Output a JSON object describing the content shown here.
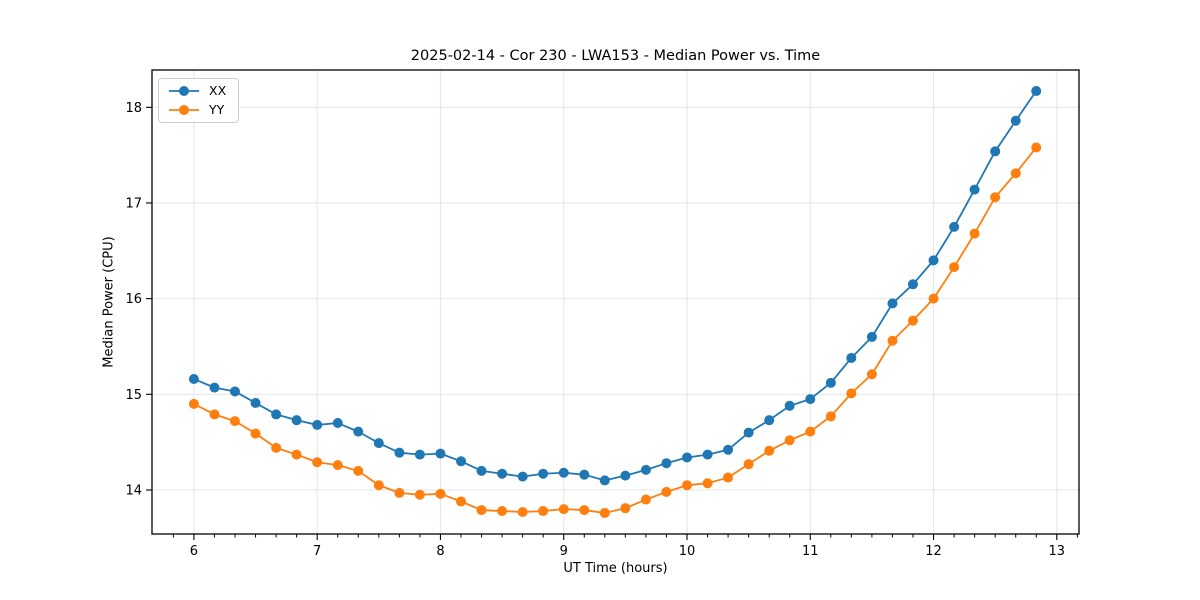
{
  "chart_data": {
    "type": "line",
    "title": "2025-02-14 - Cor 230 - LWA153 - Median Power vs. Time",
    "xlabel": "UT Time (hours)",
    "ylabel": "Median Power (CPU)",
    "xlim": [
      5.66,
      13.18
    ],
    "ylim": [
      13.54,
      18.39
    ],
    "xticks": [
      6,
      7,
      8,
      9,
      10,
      11,
      12,
      13
    ],
    "yticks": [
      14,
      15,
      16,
      17,
      18
    ],
    "x_minor_step": 0.1667,
    "grid": true,
    "grid_color": "#e6e6e6",
    "frame_color": "#000000",
    "legend_position": "upper-left",
    "x": [
      6.0,
      6.167,
      6.333,
      6.5,
      6.667,
      6.833,
      7.0,
      7.167,
      7.333,
      7.5,
      7.667,
      7.833,
      8.0,
      8.167,
      8.333,
      8.5,
      8.667,
      8.833,
      9.0,
      9.167,
      9.333,
      9.5,
      9.667,
      9.833,
      10.0,
      10.167,
      10.333,
      10.5,
      10.667,
      10.833,
      11.0,
      11.167,
      11.333,
      11.5,
      11.667,
      11.833,
      12.0,
      12.167,
      12.333,
      12.5,
      12.667,
      12.833
    ],
    "series": [
      {
        "name": "XX",
        "color": "#1f77b4",
        "values": [
          15.16,
          15.07,
          15.03,
          14.91,
          14.79,
          14.73,
          14.68,
          14.7,
          14.61,
          14.49,
          14.39,
          14.37,
          14.38,
          14.3,
          14.2,
          14.17,
          14.14,
          14.17,
          14.18,
          14.16,
          14.1,
          14.15,
          14.21,
          14.28,
          14.34,
          14.37,
          14.42,
          14.6,
          14.73,
          14.88,
          14.95,
          15.12,
          15.38,
          15.6,
          15.95,
          16.15,
          16.4,
          16.75,
          17.14,
          17.54,
          17.86,
          18.17
        ]
      },
      {
        "name": "YY",
        "color": "#ff7f0e",
        "values": [
          14.9,
          14.79,
          14.72,
          14.59,
          14.44,
          14.37,
          14.29,
          14.26,
          14.2,
          14.05,
          13.97,
          13.95,
          13.96,
          13.88,
          13.79,
          13.78,
          13.77,
          13.78,
          13.8,
          13.79,
          13.76,
          13.81,
          13.9,
          13.98,
          14.05,
          14.07,
          14.13,
          14.27,
          14.41,
          14.52,
          14.61,
          14.77,
          15.01,
          15.21,
          15.56,
          15.77,
          16.0,
          16.33,
          16.68,
          17.06,
          17.31,
          17.58
        ]
      }
    ]
  }
}
